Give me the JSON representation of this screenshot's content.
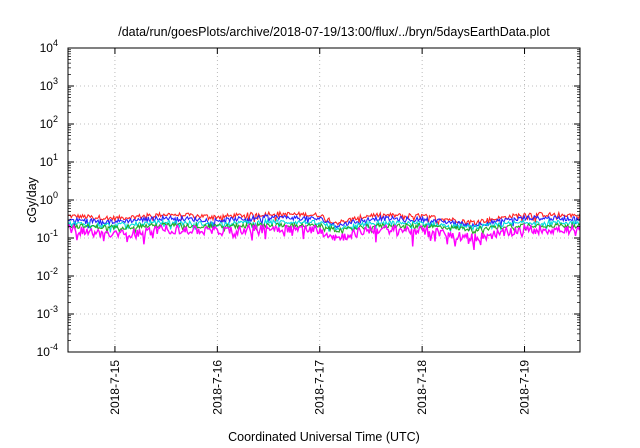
{
  "chart_data": {
    "type": "line",
    "title": "/data/run/goesPlots/archive/2018-07-19/13:00/flux/../bryn/5daysEarthData.plot",
    "xlabel": "Coordinated Universal Time (UTC)",
    "ylabel": "cGy/day",
    "y_scale": "log",
    "ylim": [
      0.0001,
      10000
    ],
    "y_ticks": [
      {
        "base": "10",
        "exp": "-4",
        "value": 0.0001
      },
      {
        "base": "10",
        "exp": "-3",
        "value": 0.001
      },
      {
        "base": "10",
        "exp": "-2",
        "value": 0.01
      },
      {
        "base": "10",
        "exp": "-1",
        "value": 0.1
      },
      {
        "base": "10",
        "exp": "0",
        "value": 1
      },
      {
        "base": "10",
        "exp": "1",
        "value": 10
      },
      {
        "base": "10",
        "exp": "2",
        "value": 100
      },
      {
        "base": "10",
        "exp": "3",
        "value": 1000
      },
      {
        "base": "10",
        "exp": "4",
        "value": 10000
      }
    ],
    "xlim": [
      "2018-07-14T13:00",
      "2018-07-19T13:00"
    ],
    "x_ticks": [
      "2018-7-15",
      "2018-7-16",
      "2018-7-17",
      "2018-7-18",
      "2018-7-19"
    ],
    "grid": true,
    "legend": "none",
    "series": [
      {
        "color": "#ff2222",
        "x": [
          "2018-07-14T13:00",
          "2018-07-15T00:00",
          "2018-07-15T12:00",
          "2018-07-16T00:00",
          "2018-07-16T12:00",
          "2018-07-17T00:00",
          "2018-07-17T04:00",
          "2018-07-17T12:00",
          "2018-07-18T00:00",
          "2018-07-18T12:00",
          "2018-07-19T00:00",
          "2018-07-19T13:00"
        ],
        "y": [
          0.38,
          0.33,
          0.42,
          0.36,
          0.44,
          0.4,
          0.25,
          0.4,
          0.38,
          0.26,
          0.42,
          0.4
        ]
      },
      {
        "color": "#2222ff",
        "x": [
          "2018-07-14T13:00",
          "2018-07-15T00:00",
          "2018-07-15T12:00",
          "2018-07-16T00:00",
          "2018-07-16T12:00",
          "2018-07-17T00:00",
          "2018-07-17T04:00",
          "2018-07-17T12:00",
          "2018-07-18T00:00",
          "2018-07-18T12:00",
          "2018-07-19T00:00",
          "2018-07-19T13:00"
        ],
        "y": [
          0.3,
          0.27,
          0.34,
          0.29,
          0.36,
          0.32,
          0.21,
          0.33,
          0.31,
          0.22,
          0.34,
          0.32
        ]
      },
      {
        "color": "#00dddd",
        "x": [
          "2018-07-14T13:00",
          "2018-07-15T00:00",
          "2018-07-15T12:00",
          "2018-07-16T00:00",
          "2018-07-16T12:00",
          "2018-07-17T00:00",
          "2018-07-17T04:00",
          "2018-07-17T12:00",
          "2018-07-18T00:00",
          "2018-07-18T12:00",
          "2018-07-19T00:00",
          "2018-07-19T13:00"
        ],
        "y": [
          0.24,
          0.22,
          0.26,
          0.23,
          0.27,
          0.25,
          0.18,
          0.25,
          0.24,
          0.19,
          0.26,
          0.25
        ]
      },
      {
        "color": "#22aa22",
        "x": [
          "2018-07-14T13:00",
          "2018-07-15T00:00",
          "2018-07-15T12:00",
          "2018-07-16T00:00",
          "2018-07-16T12:00",
          "2018-07-17T00:00",
          "2018-07-17T04:00",
          "2018-07-17T12:00",
          "2018-07-18T00:00",
          "2018-07-18T12:00",
          "2018-07-19T00:00",
          "2018-07-19T13:00"
        ],
        "y": [
          0.21,
          0.19,
          0.22,
          0.2,
          0.22,
          0.21,
          0.16,
          0.21,
          0.21,
          0.17,
          0.22,
          0.21
        ]
      },
      {
        "color": "#ff00ff",
        "x": [
          "2018-07-14T13:00",
          "2018-07-15T00:00",
          "2018-07-15T12:00",
          "2018-07-16T00:00",
          "2018-07-16T12:00",
          "2018-07-17T00:00",
          "2018-07-17T04:00",
          "2018-07-17T12:00",
          "2018-07-18T00:00",
          "2018-07-18T12:00",
          "2018-07-19T00:00",
          "2018-07-19T13:00"
        ],
        "y": [
          0.17,
          0.12,
          0.17,
          0.15,
          0.18,
          0.17,
          0.1,
          0.17,
          0.16,
          0.1,
          0.17,
          0.16
        ]
      }
    ]
  }
}
